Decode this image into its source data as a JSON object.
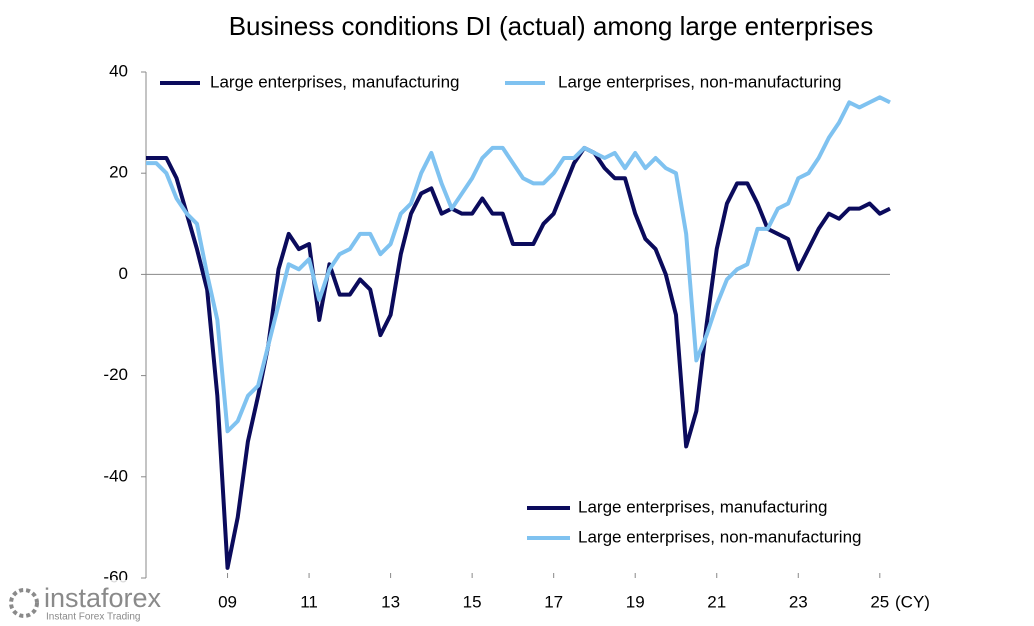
{
  "chart_data": {
    "type": "line",
    "title": "Business conditions DI (actual) among large enterprises",
    "x_unit": "(CY)",
    "x": [
      0,
      1,
      2,
      3,
      4,
      5,
      6,
      7,
      8,
      9,
      10,
      11,
      12,
      13,
      14,
      15,
      16,
      17,
      18,
      19,
      20,
      21,
      22,
      23,
      24,
      25,
      26,
      27,
      28,
      29,
      30,
      31,
      32,
      33,
      34,
      35,
      36,
      37,
      38,
      39,
      40,
      41,
      42,
      43,
      44,
      45,
      46,
      47,
      48,
      49,
      50,
      51,
      52,
      53,
      54,
      55,
      56,
      57,
      58,
      59,
      60,
      61,
      62,
      63,
      64,
      65,
      66,
      67,
      68,
      69,
      70,
      71,
      72,
      73
    ],
    "series": [
      {
        "name": "Large enterprises, manufacturing",
        "color": "#0b0b5c",
        "values": [
          23,
          23,
          23,
          19,
          12,
          5,
          -3,
          -24,
          -58,
          -48,
          -33,
          -24,
          -14,
          1,
          8,
          5,
          6,
          -9,
          2,
          -4,
          -4,
          -1,
          -3,
          -12,
          -8,
          4,
          12,
          16,
          17,
          12,
          13,
          12,
          12,
          15,
          12,
          12,
          6,
          6,
          6,
          10,
          12,
          17,
          22,
          25,
          24,
          21,
          19,
          19,
          12,
          7,
          5,
          0,
          -8,
          -34,
          -27,
          -10,
          5,
          14,
          18,
          18,
          14,
          9,
          8,
          7,
          1,
          5,
          9,
          12,
          11,
          13,
          13,
          14,
          12,
          13
        ]
      },
      {
        "name": "Large enterprises, non-manufacturing",
        "color": "#7fc2f0",
        "values": [
          22,
          22,
          20,
          15,
          12,
          10,
          0,
          -9,
          -31,
          -29,
          -24,
          -22,
          -14,
          -6,
          2,
          1,
          3,
          -5,
          1,
          4,
          5,
          8,
          8,
          4,
          6,
          12,
          14,
          20,
          24,
          18,
          13,
          16,
          19,
          23,
          25,
          25,
          22,
          19,
          18,
          18,
          20,
          23,
          23,
          25,
          24,
          23,
          24,
          21,
          24,
          21,
          23,
          21,
          20,
          8,
          -17,
          -12,
          -6,
          -1,
          1,
          2,
          9,
          9,
          13,
          14,
          19,
          20,
          23,
          27,
          30,
          34,
          33,
          34,
          35,
          34
        ]
      }
    ],
    "xlim": [
      0,
      73
    ],
    "xticks": [
      {
        "value": 8,
        "label": "09"
      },
      {
        "value": 16,
        "label": "11"
      },
      {
        "value": 24,
        "label": "13"
      },
      {
        "value": 32,
        "label": "15"
      },
      {
        "value": 40,
        "label": "17"
      },
      {
        "value": 48,
        "label": "19"
      },
      {
        "value": 56,
        "label": "21"
      },
      {
        "value": 64,
        "label": "23"
      },
      {
        "value": 72,
        "label": "25"
      }
    ],
    "ylim": [
      -60,
      40
    ],
    "yticks": [
      -60,
      -40,
      -20,
      0,
      20,
      40
    ]
  },
  "logo": {
    "name": "instaforex",
    "tagline": "Instant Forex Trading"
  }
}
